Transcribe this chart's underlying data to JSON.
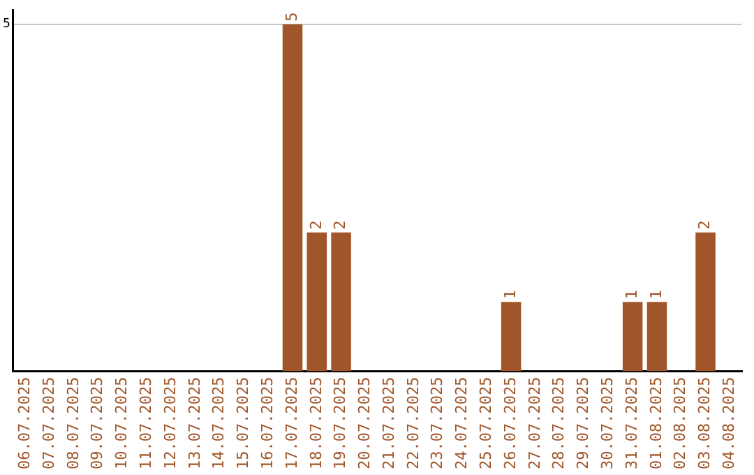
{
  "chart_data": {
    "type": "bar",
    "categories": [
      "06.07.2025",
      "07.07.2025",
      "08.07.2025",
      "09.07.2025",
      "10.07.2025",
      "11.07.2025",
      "12.07.2025",
      "13.07.2025",
      "14.07.2025",
      "15.07.2025",
      "16.07.2025",
      "17.07.2025",
      "18.07.2025",
      "19.07.2025",
      "20.07.2025",
      "21.07.2025",
      "22.07.2025",
      "23.07.2025",
      "24.07.2025",
      "25.07.2025",
      "26.07.2025",
      "27.07.2025",
      "28.07.2025",
      "29.07.2025",
      "30.07.2025",
      "31.07.2025",
      "01.08.2025",
      "02.08.2025",
      "03.08.2025",
      "04.08.2025"
    ],
    "values": [
      0,
      0,
      0,
      0,
      0,
      0,
      0,
      0,
      0,
      0,
      0,
      5,
      2,
      2,
      0,
      0,
      0,
      0,
      0,
      0,
      1,
      0,
      0,
      0,
      0,
      1,
      1,
      0,
      2,
      0
    ],
    "value_labels": [
      null,
      null,
      null,
      null,
      null,
      null,
      null,
      null,
      null,
      null,
      null,
      "5",
      "2",
      "2",
      null,
      null,
      null,
      null,
      null,
      null,
      "1",
      null,
      null,
      null,
      null,
      "1",
      "1",
      null,
      "2",
      null
    ],
    "color": "#a0562a",
    "ylim": [
      0,
      5.2
    ],
    "yticks": [
      5
    ],
    "grid": "y",
    "legend": false
  }
}
